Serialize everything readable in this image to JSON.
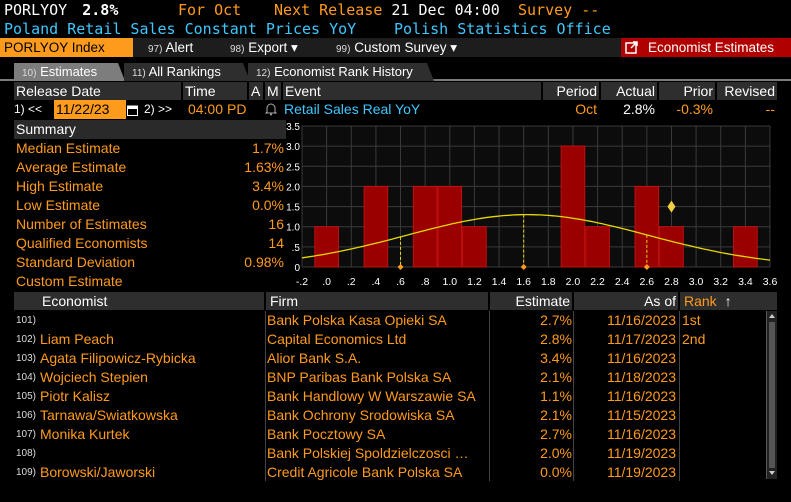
{
  "header": {
    "ticker": "PORLYOY",
    "value": "2.8%",
    "for_label": "For",
    "for_period": "Oct",
    "next_release_label": "Next Release",
    "next_release": "21 Dec 04:00",
    "survey_label": "Survey",
    "survey_value": "--",
    "indicator_name": "Poland Retail Sales Constant Prices YoY",
    "source": "Polish Statistics Office"
  },
  "command_bar": {
    "index_label": "PORLYOY Index",
    "alert_num": "97)",
    "alert_label": "Alert",
    "alert_caret": "",
    "export_num": "98)",
    "export_label": "Export",
    "export_caret": "▾",
    "survey_num": "99)",
    "survey_label": "Custom Survey",
    "survey_caret": "▾",
    "economist_label": "Economist Estimates"
  },
  "tabs": [
    {
      "num": "10)",
      "label": "Estimates"
    },
    {
      "num": "11)",
      "label": "All Rankings"
    },
    {
      "num": "12)",
      "label": "Economist Rank History"
    }
  ],
  "release_table": {
    "headers": {
      "release_date": "Release Date",
      "time": "Time",
      "a": "A",
      "m": "M",
      "event": "Event",
      "period": "Period",
      "actual": "Actual",
      "prior": "Prior",
      "revised": "Revised"
    },
    "prev_btn": "1) <<",
    "date": "11/22/23",
    "next_btn": "2) >>",
    "time": "04:00",
    "pd": "PD",
    "event": "Retail Sales Real YoY",
    "period": "Oct",
    "actual": "2.8%",
    "prior": "-0.3%",
    "revised": "--"
  },
  "summary": {
    "title": "Summary",
    "rows": [
      {
        "label": "Median Estimate",
        "value": "1.7%"
      },
      {
        "label": "Average Estimate",
        "value": "1.63%"
      },
      {
        "label": "High Estimate",
        "value": "3.4%"
      },
      {
        "label": "Low Estimate",
        "value": "0.0%"
      },
      {
        "label": "Number of Estimates",
        "value": "16"
      },
      {
        "label": "Qualified Economists",
        "value": "14"
      },
      {
        "label": "Standard Deviation",
        "value": "0.98%"
      },
      {
        "label": "Custom Estimate",
        "value": ""
      }
    ]
  },
  "chart_data": {
    "type": "bar",
    "x_ticks": [
      "-.2",
      ".0",
      ".2",
      ".4",
      ".6",
      ".8",
      "1.0",
      "1.2",
      "1.4",
      "1.6",
      "1.8",
      "2.0",
      "2.2",
      "2.4",
      "2.6",
      "2.8",
      "3.0",
      "3.2",
      "3.4",
      "3.6"
    ],
    "y_ticks": [
      "0",
      ".5",
      "1.0",
      "1.5",
      "2.0",
      "2.5",
      "3.0",
      "3.5"
    ],
    "xlim": [
      -0.2,
      3.6
    ],
    "ylim": [
      0,
      3.5
    ],
    "bars": [
      {
        "x": 0.0,
        "value": 1
      },
      {
        "x": 0.4,
        "value": 2
      },
      {
        "x": 0.8,
        "value": 2
      },
      {
        "x": 1.0,
        "value": 2
      },
      {
        "x": 1.2,
        "value": 1
      },
      {
        "x": 2.0,
        "value": 3
      },
      {
        "x": 2.2,
        "value": 1
      },
      {
        "x": 2.6,
        "value": 2
      },
      {
        "x": 2.8,
        "value": 1
      },
      {
        "x": 3.4,
        "value": 1
      }
    ],
    "normal_curve": {
      "mean": 1.63,
      "std": 0.98,
      "peak": 1.3
    },
    "markers_x": [
      0.6,
      1.6,
      2.6
    ],
    "actual_marker": {
      "x": 2.8,
      "y": 1.5
    },
    "colors": {
      "bar": "#9a0000",
      "bar_edge": "#c01010",
      "curve": "#e6d800",
      "marker": "#ff9b1c",
      "actual": "#f0d040",
      "grid": "#3a3a3a"
    }
  },
  "economist_table": {
    "headers": {
      "economist": "Economist",
      "firm": "Firm",
      "estimate": "Estimate",
      "as_of": "As of",
      "rank": "Rank",
      "sort": "↑"
    },
    "rows": [
      {
        "idx": "101)",
        "economist": "",
        "firm": "Bank Polska Kasa Opieki SA",
        "estimate": "2.7%",
        "as_of": "11/16/2023",
        "rank": "1st"
      },
      {
        "idx": "102)",
        "economist": "Liam Peach",
        "firm": "Capital Economics Ltd",
        "estimate": "2.8%",
        "as_of": "11/17/2023",
        "rank": "2nd"
      },
      {
        "idx": "103)",
        "economist": "Agata Filipowicz-Rybicka",
        "firm": "Alior Bank S.A.",
        "estimate": "3.4%",
        "as_of": "11/16/2023",
        "rank": ""
      },
      {
        "idx": "104)",
        "economist": "Wojciech Stepien",
        "firm": "BNP Paribas Bank Polska SA",
        "estimate": "2.1%",
        "as_of": "11/18/2023",
        "rank": ""
      },
      {
        "idx": "105)",
        "economist": "Piotr Kalisz",
        "firm": "Bank Handlowy W Warszawie SA",
        "estimate": "1.1%",
        "as_of": "11/16/2023",
        "rank": ""
      },
      {
        "idx": "106)",
        "economist": "Tarnawa/Swiatkowska",
        "firm": "Bank Ochrony Srodowiska SA",
        "estimate": "2.1%",
        "as_of": "11/15/2023",
        "rank": ""
      },
      {
        "idx": "107)",
        "economist": "Monika Kurtek",
        "firm": "Bank Pocztowy SA",
        "estimate": "2.7%",
        "as_of": "11/16/2023",
        "rank": ""
      },
      {
        "idx": "108)",
        "economist": "",
        "firm": "Bank Polskiej Spoldzielczosci …",
        "estimate": "2.0%",
        "as_of": "11/19/2023",
        "rank": ""
      },
      {
        "idx": "109)",
        "economist": "Borowski/Jaworski",
        "firm": "Credit Agricole Bank Polska SA",
        "estimate": "0.0%",
        "as_of": "11/19/2023",
        "rank": ""
      }
    ]
  }
}
